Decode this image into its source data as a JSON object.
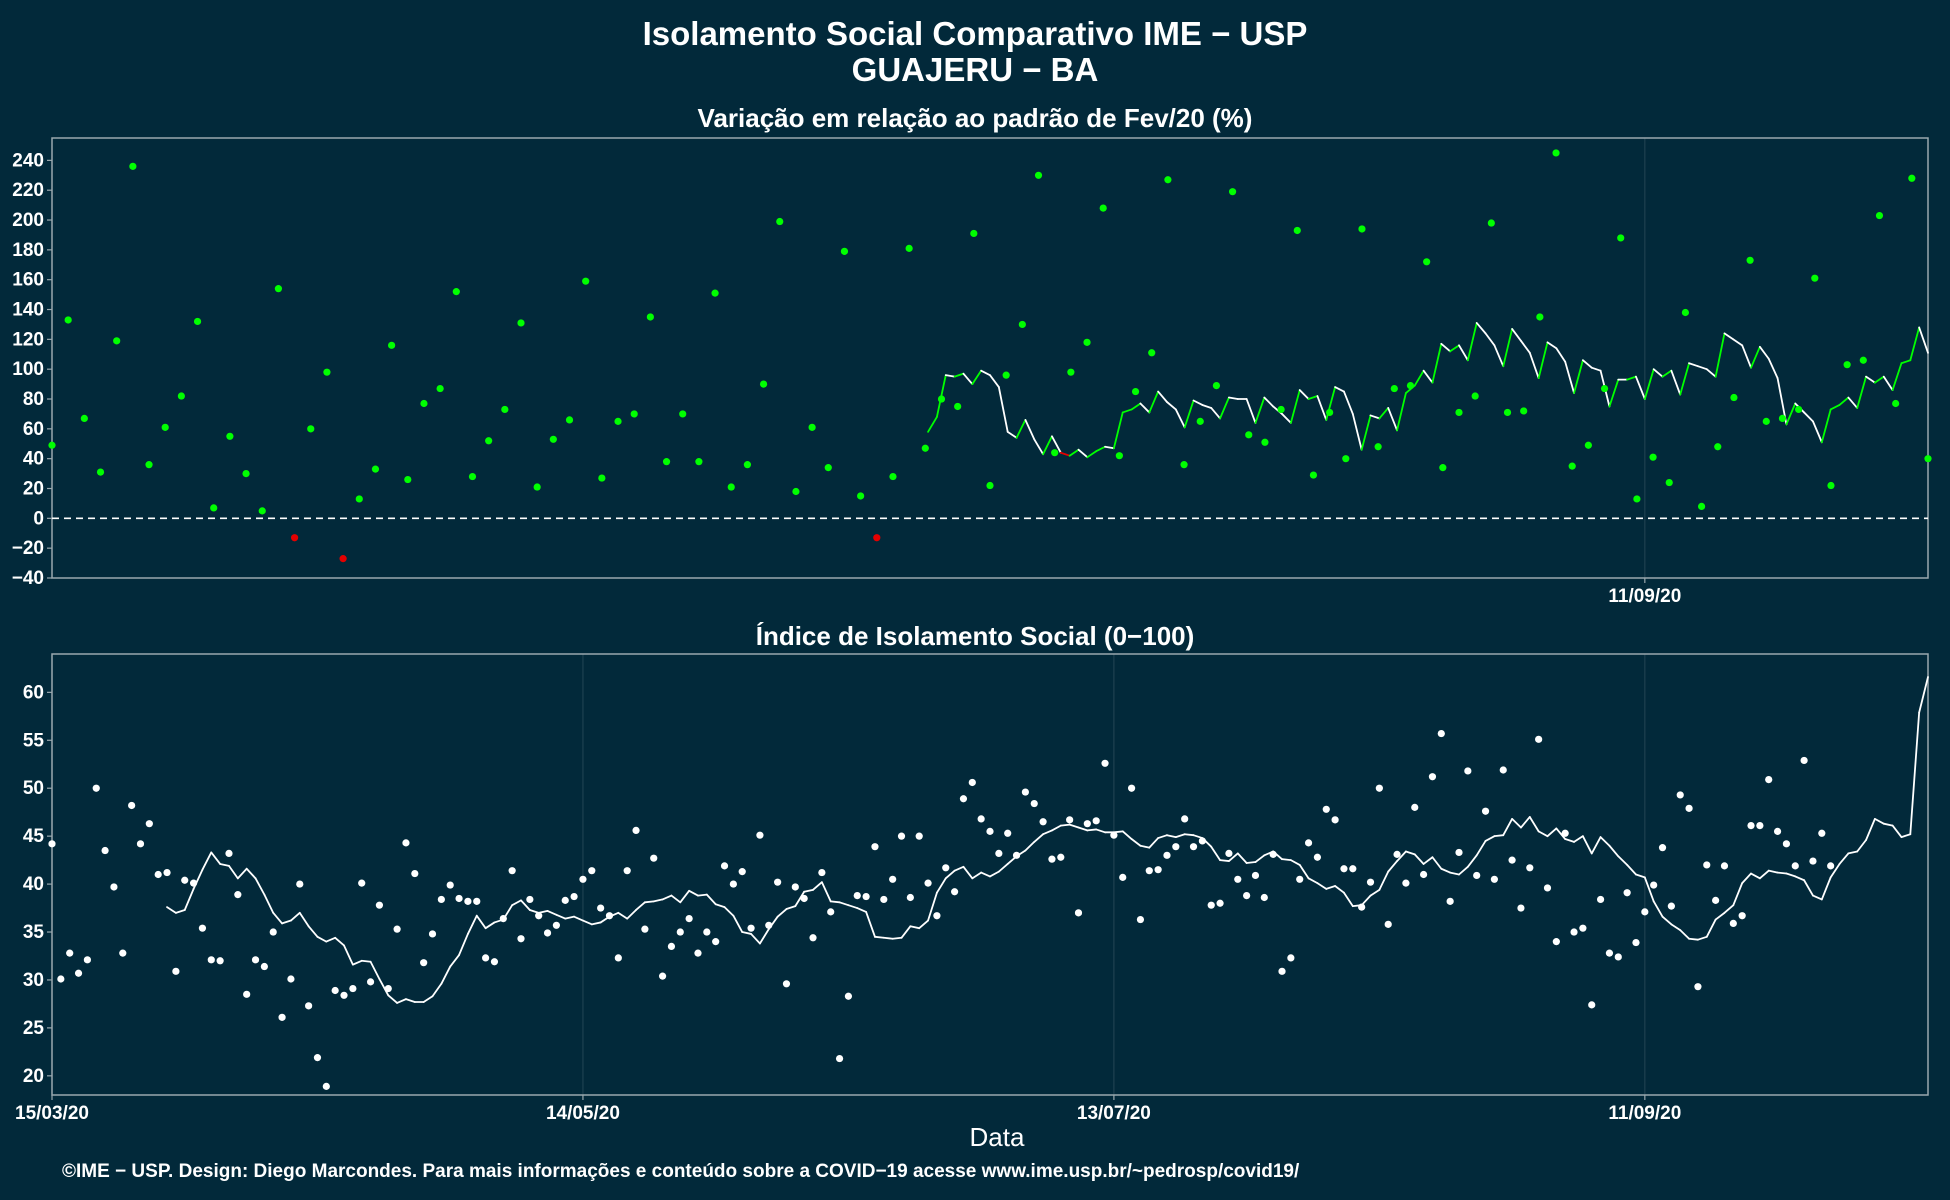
{
  "page": {
    "title_line1": "Isolamento Social Comparativo IME − USP",
    "title_line2": "GUAJERU − BA",
    "footer": "©IME − USP. Design: Diego Marcondes. Para mais informações e conteúdo sobre a COVID−19 acesse www.ime.usp.br/~pedrosp/covid19/"
  },
  "colors": {
    "background": "#02293A",
    "panel_border": "#9aa8ae",
    "grid": "#1e4150",
    "positive": "#00FF00",
    "negative": "#E50000",
    "index": "#FFFFFF",
    "zero_line": "#FFFFFF"
  },
  "chart_data": [
    {
      "type": "line",
      "title": "Variação em relação ao padrão de Fev/20 (%)",
      "ylim": [
        -40,
        255
      ],
      "y_ticks": [
        -40,
        -20,
        0,
        20,
        40,
        60,
        80,
        100,
        120,
        140,
        160,
        180,
        200,
        220,
        240
      ],
      "x_tick_labels": [
        "11/09/20"
      ],
      "x_start": "2020-03-15",
      "grid": true,
      "reference_line": 0,
      "series": [
        {
          "kind": "points",
          "values": [
            49,
            133,
            67,
            31,
            119,
            236,
            36,
            61,
            82,
            132,
            7,
            55,
            30,
            5,
            154,
            -13,
            60,
            98,
            -27,
            13,
            33,
            116,
            26,
            77,
            87,
            152,
            28,
            52,
            73,
            131,
            21,
            53,
            66,
            159,
            27,
            65,
            70,
            135,
            38,
            70,
            38,
            151,
            21,
            36,
            90,
            199,
            18,
            61,
            34,
            179,
            15,
            -13,
            28,
            181,
            47,
            80,
            75,
            191,
            22,
            96,
            130,
            230,
            44,
            98,
            118,
            208,
            42,
            85,
            111,
            227,
            36,
            65,
            89,
            219,
            56,
            51,
            73,
            193,
            29,
            71,
            40,
            194,
            48,
            87,
            89,
            172,
            34,
            71,
            82,
            198,
            71,
            72,
            135,
            245,
            35,
            49,
            87,
            188,
            13,
            41,
            24,
            138,
            8,
            48,
            81,
            173,
            65,
            67,
            73,
            161,
            22,
            103,
            106,
            203,
            77,
            228,
            40
          ]
        },
        {
          "kind": "line",
          "values": [
            58,
            68,
            96,
            95,
            97,
            90,
            99,
            96,
            88,
            58,
            54,
            66,
            53,
            43,
            55,
            44,
            42,
            46,
            41,
            45,
            48,
            47,
            71,
            73,
            77,
            71,
            85,
            78,
            73,
            61,
            79,
            76,
            74,
            67,
            81,
            80,
            80,
            64,
            81,
            75,
            70,
            64,
            86,
            80,
            82,
            66,
            88,
            85,
            70,
            46,
            69,
            67,
            74,
            59,
            84,
            89,
            99,
            91,
            117,
            112,
            116,
            106,
            131,
            124,
            116,
            102,
            127,
            119,
            111,
            94,
            118,
            114,
            105,
            84,
            106,
            101,
            99,
            75,
            93,
            93,
            95,
            80,
            100,
            95,
            99,
            83,
            104,
            102,
            100,
            95,
            124,
            120,
            116,
            101,
            115,
            107,
            94,
            63,
            77,
            71,
            65,
            51,
            73,
            76,
            81,
            74,
            95,
            91,
            95,
            86,
            104,
            106,
            128,
            111
          ]
        }
      ]
    },
    {
      "type": "line",
      "title": "Índice de Isolamento Social (0−100)",
      "xlabel": "Data",
      "ylim": [
        18,
        64
      ],
      "y_ticks": [
        20,
        25,
        30,
        35,
        40,
        45,
        50,
        55,
        60
      ],
      "x_tick_labels": [
        "15/03/20",
        "14/05/20",
        "13/07/20",
        "11/09/20"
      ],
      "x_start": "2020-03-15",
      "grid": true,
      "series": [
        {
          "kind": "points",
          "values": [
            44.2,
            30.1,
            32.8,
            30.7,
            32.1,
            50.0,
            43.5,
            39.7,
            32.8,
            48.2,
            44.2,
            46.3,
            41.0,
            41.2,
            30.9,
            40.4,
            40.1,
            35.4,
            32.1,
            32.0,
            43.2,
            38.9,
            28.5,
            32.1,
            31.4,
            35.0,
            26.1,
            30.1,
            40.0,
            27.3,
            21.9,
            18.9,
            28.9,
            28.4,
            29.1,
            40.1,
            29.8,
            37.8,
            29.1,
            35.3,
            44.3,
            41.1,
            31.8,
            34.8,
            38.4,
            39.9,
            38.5,
            38.2,
            38.2,
            32.3,
            31.9,
            36.4,
            41.4,
            34.3,
            38.4,
            36.7,
            34.9,
            35.7,
            38.3,
            38.7,
            40.5,
            41.4,
            37.5,
            36.7,
            32.3,
            41.4,
            45.6,
            35.3,
            42.7,
            30.4,
            33.5,
            35.0,
            36.4,
            32.8,
            35.0,
            34.0,
            41.9,
            40.0,
            41.3,
            35.4,
            45.1,
            35.7,
            40.2,
            29.6,
            39.7,
            38.5,
            34.4,
            41.2,
            37.1,
            21.8,
            28.3,
            38.8,
            38.7,
            43.9,
            38.4,
            40.5,
            45.0,
            38.6,
            45.0,
            40.1,
            36.7,
            41.7,
            39.2,
            48.9,
            50.6,
            46.8,
            45.5,
            43.2,
            45.3,
            43.0,
            49.6,
            48.4,
            46.5,
            42.6,
            42.8,
            46.7,
            37.0,
            46.3,
            46.6,
            52.6,
            45.1,
            40.7,
            50.0,
            36.3,
            41.4,
            41.5,
            43.0,
            43.9,
            46.8,
            43.9,
            44.5,
            37.8,
            38.0,
            43.2,
            40.5,
            38.8,
            40.9,
            38.6,
            43.1,
            30.9,
            32.3,
            40.5,
            44.3,
            42.8,
            47.8,
            46.7,
            41.6,
            41.6,
            37.6,
            40.2,
            50.0,
            35.8,
            43.1,
            40.1,
            48.0,
            41.0,
            51.2,
            55.7,
            38.2,
            43.3,
            51.8,
            40.9,
            47.6,
            40.5,
            51.9,
            42.5,
            37.5,
            41.7,
            55.1,
            39.6,
            34.0,
            45.3,
            35.0,
            35.4,
            27.4,
            38.4,
            32.8,
            32.4,
            39.1,
            33.9,
            37.1,
            39.9,
            43.8,
            37.7,
            49.3,
            47.9,
            29.3,
            42.0,
            38.3,
            41.9,
            35.9,
            36.7,
            46.1,
            46.1,
            50.9,
            45.5,
            44.2,
            41.9,
            52.9,
            42.4,
            45.3,
            41.9
          ]
        },
        {
          "kind": "line",
          "values": [
            37.6,
            37.0,
            37.3,
            39.5,
            41.5,
            43.3,
            42.1,
            41.9,
            40.6,
            41.6,
            40.6,
            38.9,
            37.0,
            35.9,
            36.2,
            37.0,
            35.6,
            34.5,
            34.0,
            34.4,
            33.6,
            31.6,
            32.0,
            31.9,
            30.1,
            28.4,
            27.6,
            28.0,
            27.7,
            27.7,
            28.3,
            29.6,
            31.4,
            32.6,
            34.8,
            36.7,
            35.4,
            36.0,
            36.3,
            37.8,
            38.3,
            37.3,
            37.0,
            37.2,
            36.8,
            36.4,
            36.6,
            36.2,
            35.8,
            36.0,
            36.6,
            37.0,
            36.4,
            37.3,
            38.1,
            38.2,
            38.4,
            38.8,
            38.1,
            39.3,
            38.8,
            38.9,
            37.9,
            37.6,
            36.7,
            35.0,
            34.8,
            33.8,
            35.3,
            36.6,
            37.4,
            37.7,
            39.2,
            39.4,
            40.2,
            38.2,
            38.1,
            37.8,
            37.5,
            37.1,
            34.5,
            34.4,
            34.3,
            34.4,
            35.6,
            35.4,
            36.2,
            39.1,
            40.6,
            41.4,
            41.8,
            40.6,
            41.2,
            40.8,
            41.3,
            42.1,
            42.9,
            43.5,
            44.4,
            45.2,
            45.6,
            46.1,
            46.2,
            45.9,
            45.6,
            45.7,
            45.4,
            45.4,
            45.5,
            44.7,
            44.0,
            43.8,
            44.8,
            45.1,
            44.9,
            45.2,
            45.1,
            44.8,
            43.9,
            42.5,
            42.4,
            43.2,
            42.2,
            42.3,
            43.0,
            43.4,
            42.6,
            42.5,
            42.0,
            40.6,
            40.1,
            39.5,
            39.8,
            39.1,
            37.7,
            37.8,
            38.8,
            39.4,
            41.3,
            42.4,
            43.4,
            43.1,
            42.1,
            42.8,
            41.6,
            41.2,
            41.0,
            41.8,
            43.0,
            44.5,
            45.0,
            45.1,
            46.8,
            45.9,
            47.0,
            45.5,
            45.0,
            45.8,
            44.7,
            44.4,
            45.0,
            43.2,
            44.9,
            44.0,
            42.9,
            42.0,
            41.0,
            40.7,
            38.2,
            36.6,
            35.8,
            35.2,
            34.3,
            34.2,
            34.5,
            36.3,
            37.0,
            37.8,
            40.1,
            41.1,
            40.6,
            41.4,
            41.2,
            41.1,
            40.8,
            40.4,
            38.8,
            38.4,
            40.7,
            42.1,
            43.2,
            43.4,
            44.6,
            46.8,
            46.3,
            46.1,
            44.9,
            45.2,
            57.9,
            61.6
          ]
        }
      ]
    }
  ]
}
